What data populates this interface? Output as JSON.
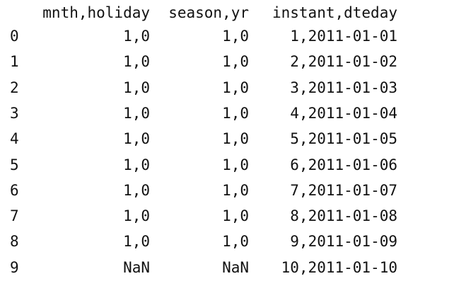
{
  "dataframe": {
    "columns": [
      "mnth,holiday",
      "season,yr",
      "instant,dteday"
    ],
    "rows": [
      {
        "index": "0",
        "values": [
          "1,0",
          "1,0",
          "1,2011-01-01"
        ]
      },
      {
        "index": "1",
        "values": [
          "1,0",
          "1,0",
          "2,2011-01-02"
        ]
      },
      {
        "index": "2",
        "values": [
          "1,0",
          "1,0",
          "3,2011-01-03"
        ]
      },
      {
        "index": "3",
        "values": [
          "1,0",
          "1,0",
          "4,2011-01-04"
        ]
      },
      {
        "index": "4",
        "values": [
          "1,0",
          "1,0",
          "5,2011-01-05"
        ]
      },
      {
        "index": "5",
        "values": [
          "1,0",
          "1,0",
          "6,2011-01-06"
        ]
      },
      {
        "index": "6",
        "values": [
          "1,0",
          "1,0",
          "7,2011-01-07"
        ]
      },
      {
        "index": "7",
        "values": [
          "1,0",
          "1,0",
          "8,2011-01-08"
        ]
      },
      {
        "index": "8",
        "values": [
          "1,0",
          "1,0",
          "9,2011-01-09"
        ]
      },
      {
        "index": "9",
        "values": [
          "NaN",
          "NaN",
          "10,2011-01-10"
        ]
      }
    ]
  }
}
